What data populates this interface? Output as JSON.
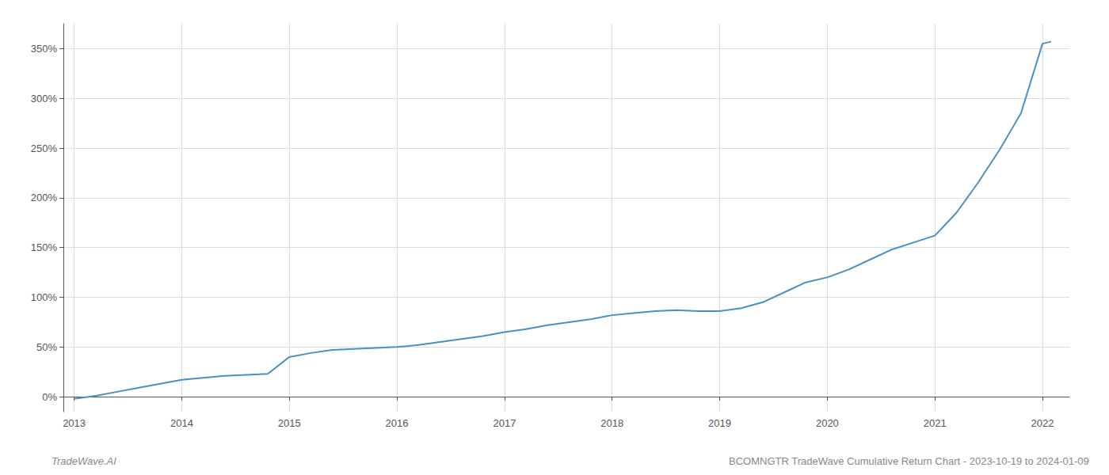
{
  "chart_data": {
    "type": "line",
    "title": "BCOMNGTR TradeWave Cumulative Return Chart - 2023-10-19 to 2024-01-09",
    "annotations": [
      "TradeWave.AI"
    ],
    "x": [
      2013.0,
      2013.2,
      2013.4,
      2013.6,
      2013.8,
      2014.0,
      2014.2,
      2014.4,
      2014.6,
      2014.8,
      2015.0,
      2015.2,
      2015.4,
      2015.6,
      2015.8,
      2016.0,
      2016.2,
      2016.4,
      2016.6,
      2016.8,
      2017.0,
      2017.2,
      2017.4,
      2017.6,
      2017.8,
      2018.0,
      2018.2,
      2018.4,
      2018.6,
      2018.8,
      2019.0,
      2019.2,
      2019.4,
      2019.6,
      2019.8,
      2020.0,
      2020.2,
      2020.4,
      2020.6,
      2020.8,
      2021.0,
      2021.2,
      2021.4,
      2021.6,
      2021.8,
      2022.0,
      2022.08
    ],
    "values": [
      -2,
      1,
      5,
      9,
      13,
      17,
      19,
      21,
      22,
      23,
      40,
      44,
      47,
      48,
      49,
      50,
      52,
      55,
      58,
      61,
      65,
      68,
      72,
      75,
      78,
      82,
      84,
      86,
      87,
      86,
      86,
      89,
      95,
      105,
      115,
      120,
      128,
      138,
      148,
      155,
      162,
      185,
      215,
      248,
      285,
      355,
      357
    ],
    "color": "#4a90c4",
    "xlim": [
      2012.9,
      2022.25
    ],
    "xticks": [
      2013,
      2014,
      2015,
      2016,
      2017,
      2018,
      2019,
      2020,
      2021,
      2022
    ],
    "ylim": [
      -15,
      375
    ],
    "yticks": [
      {
        "value": 0,
        "label": "0%"
      },
      {
        "value": 50,
        "label": "50%"
      },
      {
        "value": 100,
        "label": "100%"
      },
      {
        "value": 150,
        "label": "150%"
      },
      {
        "value": 200,
        "label": "200%"
      },
      {
        "value": 250,
        "label": "250%"
      },
      {
        "value": 300,
        "label": "300%"
      },
      {
        "value": 350,
        "label": "350%"
      }
    ],
    "grid": true
  }
}
